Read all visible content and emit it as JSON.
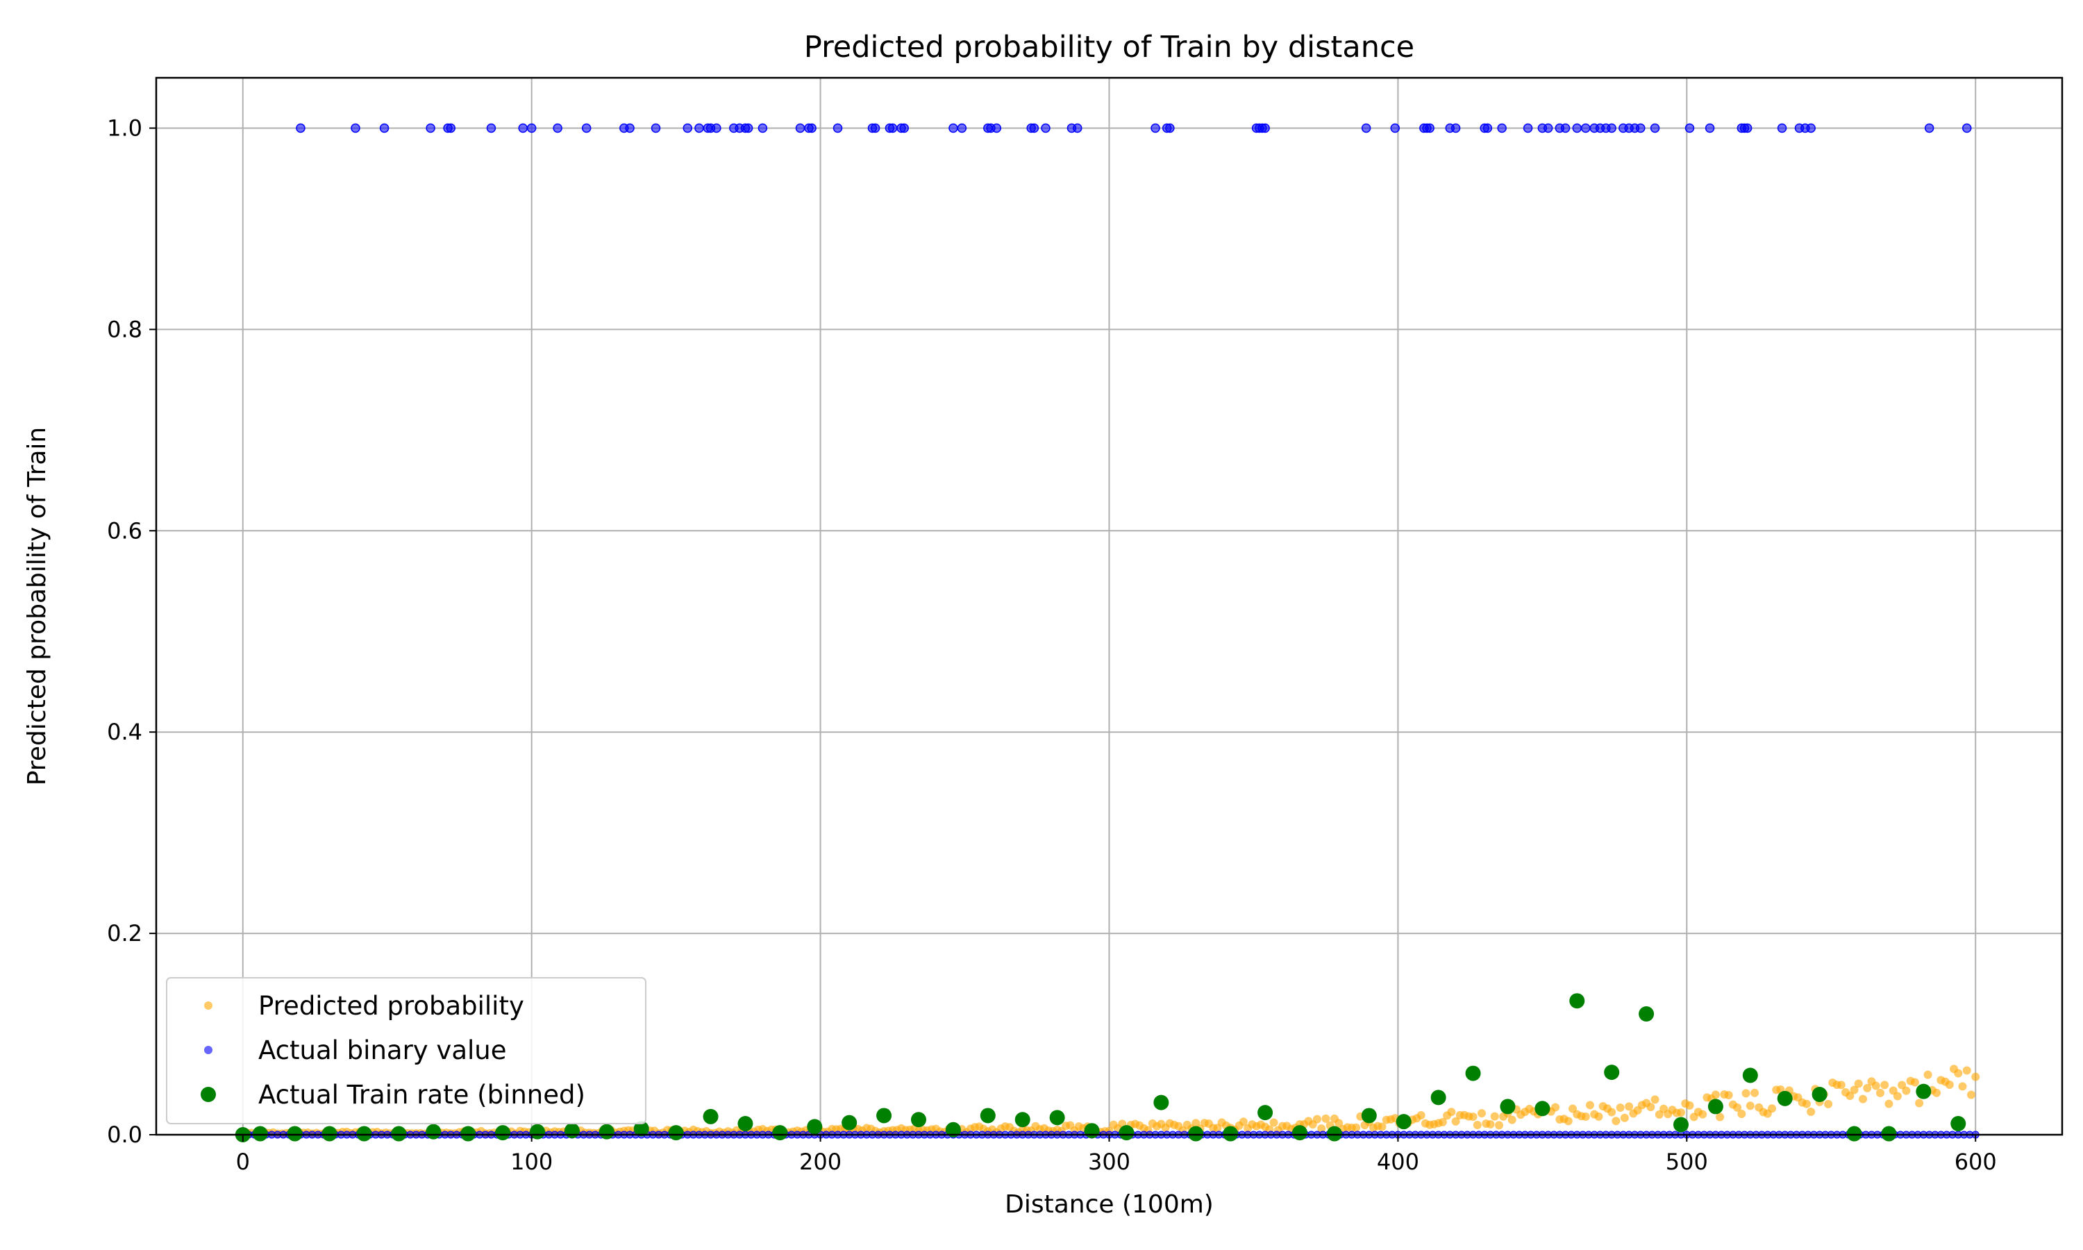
{
  "chart_data": {
    "type": "scatter",
    "title": "Predicted probability of Train by distance",
    "xlabel": "Distance (100m)",
    "ylabel": "Predicted probability of Train",
    "xlim": [
      -30,
      630
    ],
    "ylim": [
      0.0,
      1.05
    ],
    "xticks": [
      0,
      100,
      200,
      300,
      400,
      500,
      600
    ],
    "xtick_labels": [
      "0",
      "100",
      "200",
      "300",
      "400",
      "500",
      "600"
    ],
    "yticks": [
      0.0,
      0.2,
      0.4,
      0.6,
      0.8,
      1.0
    ],
    "ytick_labels": [
      "0.0",
      "0.2",
      "0.4",
      "0.6",
      "0.8",
      "1.0"
    ],
    "grid": true,
    "legend_position": "lower-left",
    "colors": {
      "predicted": "#ffa500",
      "actual": "#0000ff",
      "binned": "#008000",
      "grid": "#b0b0b0"
    },
    "series": [
      {
        "name": "Predicted probability",
        "kind": "band",
        "x": [
          0,
          50,
          100,
          150,
          200,
          250,
          300,
          350,
          400,
          450,
          500,
          550,
          600
        ],
        "y": [
          0.0015,
          0.002,
          0.0025,
          0.003,
          0.004,
          0.005,
          0.0065,
          0.009,
          0.013,
          0.019,
          0.027,
          0.038,
          0.052
        ],
        "spread": [
          0.001,
          0.001,
          0.0015,
          0.002,
          0.002,
          0.003,
          0.004,
          0.005,
          0.007,
          0.009,
          0.012,
          0.014,
          0.016
        ]
      },
      {
        "name": "Actual binary value",
        "x_ones": [
          20,
          39,
          49,
          65,
          71,
          72,
          86,
          97,
          100,
          109,
          119,
          132,
          134,
          143,
          154,
          158,
          161,
          162,
          164,
          170,
          172,
          174,
          175,
          180,
          193,
          196,
          197,
          206,
          218,
          219,
          224,
          225,
          228,
          229,
          246,
          249,
          258,
          259,
          261,
          273,
          274,
          278,
          287,
          289,
          316,
          320,
          321,
          351,
          352,
          353,
          354,
          389,
          399,
          409,
          410,
          411,
          418,
          420,
          430,
          431,
          436,
          445,
          450,
          452,
          456,
          458,
          462,
          465,
          468,
          470,
          472,
          474,
          478,
          480,
          482,
          484,
          489,
          501,
          508,
          519,
          520,
          521,
          533,
          539,
          541,
          543,
          584,
          597
        ],
        "zeros_from": 0,
        "zeros_to": 600
      },
      {
        "name": "Actual Train rate (binned)",
        "x": [
          0,
          6,
          18,
          30,
          42,
          54,
          66,
          78,
          90,
          102,
          114,
          126,
          138,
          150,
          162,
          174,
          186,
          198,
          210,
          222,
          234,
          246,
          258,
          270,
          282,
          294,
          306,
          318,
          330,
          342,
          354,
          366,
          378,
          390,
          402,
          414,
          426,
          438,
          450,
          462,
          474,
          486,
          498,
          510,
          522,
          534,
          546,
          558,
          570,
          582,
          594
        ],
        "y": [
          0.0,
          0.001,
          0.001,
          0.001,
          0.001,
          0.001,
          0.003,
          0.001,
          0.002,
          0.003,
          0.004,
          0.003,
          0.006,
          0.002,
          0.018,
          0.011,
          0.002,
          0.008,
          0.012,
          0.019,
          0.015,
          0.005,
          0.019,
          0.015,
          0.017,
          0.004,
          0.002,
          0.032,
          0.001,
          0.001,
          0.022,
          0.002,
          0.001,
          0.019,
          0.013,
          0.037,
          0.061,
          0.028,
          0.026,
          0.133,
          0.062,
          0.12,
          0.01,
          0.028,
          0.059,
          0.036,
          0.04,
          0.001,
          0.001,
          0.043,
          0.011
        ]
      }
    ]
  }
}
